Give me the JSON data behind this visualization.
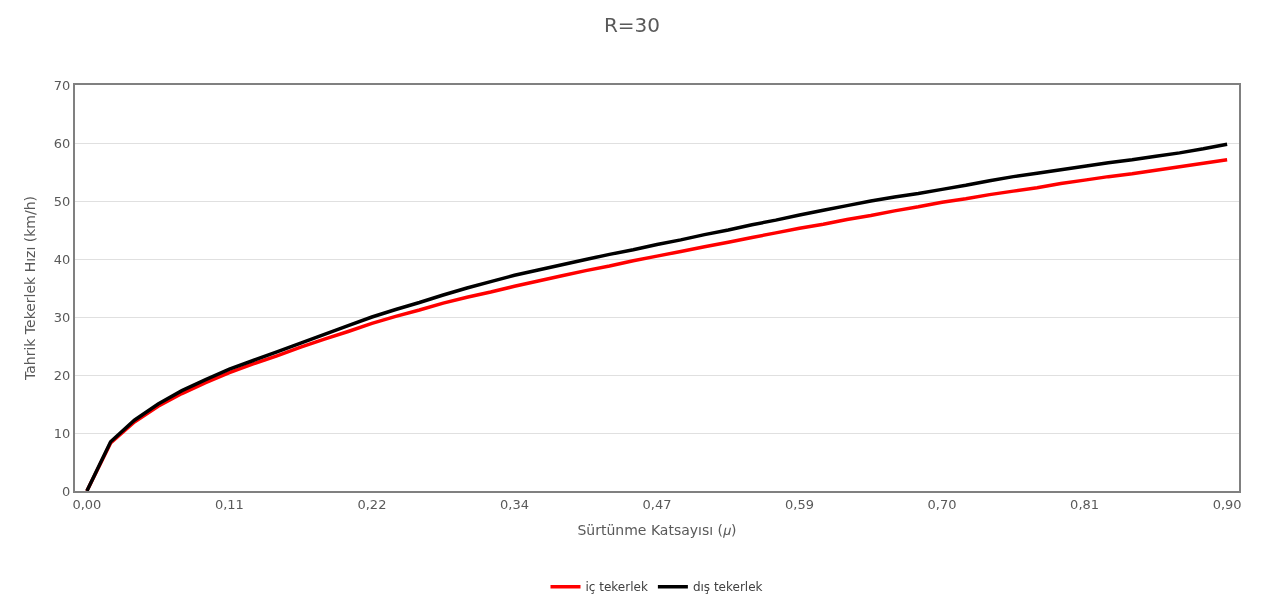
{
  "chart_data": {
    "type": "line",
    "title": "R=30",
    "xlabel": "Sürtünme Katsayısı (𝜇)",
    "ylabel": "Tahrik Tekerlek Hızı (km/h)",
    "categories": [
      "0,00",
      null,
      null,
      null,
      null,
      null,
      "0,11",
      null,
      null,
      null,
      null,
      null,
      "0,22",
      null,
      null,
      null,
      null,
      null,
      "0,34",
      null,
      null,
      null,
      null,
      null,
      "0,47",
      null,
      null,
      null,
      null,
      null,
      "0,59",
      null,
      null,
      null,
      null,
      null,
      "0,70",
      null,
      null,
      null,
      null,
      null,
      "0,81",
      null,
      null,
      null,
      null,
      null,
      "0,90"
    ],
    "series": [
      {
        "name": "iç tekerlek",
        "color": "#ff0000",
        "values": [
          0,
          8.3,
          11.9,
          14.6,
          16.8,
          18.7,
          20.4,
          21.9,
          23.3,
          24.8,
          26.2,
          27.5,
          28.9,
          30.1,
          31.2,
          32.4,
          33.4,
          34.3,
          35.3,
          36.2,
          37.1,
          38,
          38.8,
          39.7,
          40.5,
          41.3,
          42.1,
          42.9,
          43.7,
          44.5,
          45.3,
          46,
          46.8,
          47.5,
          48.3,
          49,
          49.8,
          50.4,
          51.1,
          51.7,
          52.3,
          53,
          53.6,
          54.2,
          54.7,
          55.3,
          55.9,
          56.5,
          57.1
        ]
      },
      {
        "name": "dış tekerlek",
        "color": "#000000",
        "values": [
          0,
          8.5,
          12.2,
          15,
          17.3,
          19.2,
          21,
          22.5,
          24,
          25.5,
          27,
          28.5,
          30,
          31.3,
          32.5,
          33.8,
          35,
          36.1,
          37.2,
          38.1,
          39,
          39.9,
          40.8,
          41.6,
          42.5,
          43.3,
          44.2,
          45,
          45.9,
          46.7,
          47.6,
          48.4,
          49.2,
          50,
          50.7,
          51.3,
          52,
          52.7,
          53.5,
          54.2,
          54.8,
          55.4,
          56,
          56.6,
          57.1,
          57.7,
          58.3,
          59,
          59.8
        ]
      }
    ],
    "ylim": [
      0,
      70
    ],
    "yticks": [
      0,
      10,
      20,
      30,
      40,
      50,
      60,
      70
    ],
    "grid": "y",
    "legend": "bottom",
    "marker": "none",
    "line_style": "solid"
  }
}
